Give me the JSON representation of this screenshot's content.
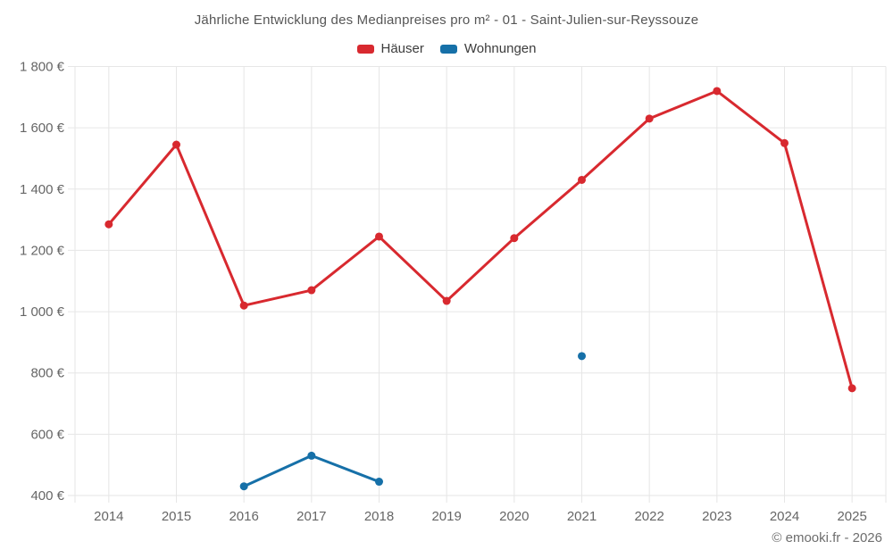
{
  "header": {
    "title": "Jährliche Entwicklung des Medianpreises pro m² - 01 - Saint-Julien-sur-Reyssouze"
  },
  "footer": {
    "copyright": "© emooki.fr - 2026"
  },
  "chart_data": {
    "type": "line",
    "title": "Jährliche Entwicklung des Medianpreises pro m² - 01 - Saint-Julien-sur-Reyssouze",
    "categories": [
      "2014",
      "2015",
      "2016",
      "2017",
      "2018",
      "2019",
      "2020",
      "2021",
      "2022",
      "2023",
      "2024",
      "2025"
    ],
    "series": [
      {
        "name": "Häuser",
        "color": "#d8292f",
        "values": [
          1285,
          1545,
          1020,
          1070,
          1245,
          1035,
          1240,
          1430,
          1630,
          1720,
          1550,
          750
        ]
      },
      {
        "name": "Wohnungen",
        "color": "#1670a8",
        "values": [
          null,
          null,
          430,
          530,
          445,
          null,
          null,
          855,
          null,
          null,
          null,
          null
        ]
      }
    ],
    "ylim": [
      400,
      1800
    ],
    "ytick_step": 200,
    "ytick_suffix": " €",
    "xlabel": "",
    "ylabel": "",
    "grid": true,
    "grid_color": "#e6e6e6",
    "legend_position": "top",
    "marker": "circle"
  }
}
